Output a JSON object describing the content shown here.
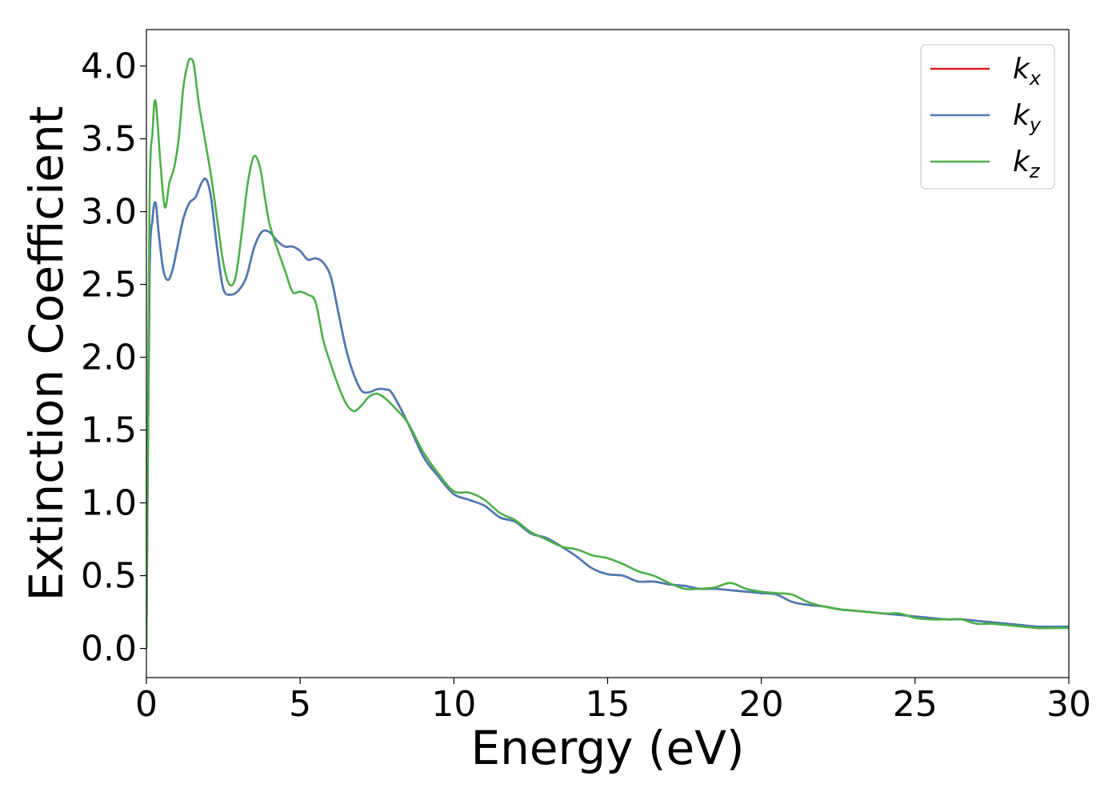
{
  "chart_data": {
    "type": "line",
    "xlabel": "Energy (eV)",
    "ylabel": "Extinction Coefficient",
    "xlim": [
      0,
      30
    ],
    "ylim": [
      -0.2,
      4.25
    ],
    "xticks": [
      0,
      5,
      10,
      15,
      20,
      25,
      30
    ],
    "xtick_labels": [
      "0",
      "5",
      "10",
      "15",
      "20",
      "25",
      "30"
    ],
    "yticks": [
      0.0,
      0.5,
      1.0,
      1.5,
      2.0,
      2.5,
      3.0,
      3.5,
      4.0
    ],
    "ytick_labels": [
      "0.0",
      "0.5",
      "1.0",
      "1.5",
      "2.0",
      "2.5",
      "3.0",
      "3.5",
      "4.0"
    ],
    "grid": false,
    "legend_position": "top-right",
    "series": [
      {
        "name": "k_x",
        "label_base": "k",
        "label_sub": "x",
        "color": "#e41a1c",
        "x": [
          0,
          0.1,
          0.2,
          0.3,
          0.4,
          0.55,
          0.7,
          0.85,
          1.0,
          1.2,
          1.4,
          1.6,
          1.8,
          1.95,
          2.1,
          2.3,
          2.5,
          2.75,
          3.0,
          3.25,
          3.5,
          3.75,
          4.0,
          4.25,
          4.5,
          4.75,
          5.0,
          5.25,
          5.5,
          5.75,
          6.0,
          6.25,
          6.5,
          6.75,
          7.0,
          7.25,
          7.5,
          7.75,
          8.0,
          8.5,
          9.0,
          9.5,
          10.0,
          10.5,
          11.0,
          11.5,
          12.0,
          12.5,
          13.0,
          13.5,
          14.0,
          14.5,
          15.0,
          15.5,
          16.0,
          16.5,
          17.0,
          17.5,
          18.0,
          18.5,
          19.0,
          19.5,
          20.0,
          20.5,
          21.0,
          21.5,
          22.0,
          22.5,
          23.0,
          23.5,
          24.0,
          24.5,
          25.0,
          25.5,
          26.0,
          26.5,
          27.0,
          27.5,
          28.0,
          28.5,
          29.0,
          29.5,
          30.0
        ],
        "y": [
          0.0,
          2.5,
          2.95,
          3.06,
          2.85,
          2.6,
          2.53,
          2.6,
          2.75,
          2.95,
          3.06,
          3.1,
          3.2,
          3.22,
          3.1,
          2.75,
          2.47,
          2.43,
          2.46,
          2.55,
          2.75,
          2.86,
          2.86,
          2.8,
          2.76,
          2.76,
          2.73,
          2.67,
          2.68,
          2.65,
          2.55,
          2.3,
          2.05,
          1.88,
          1.77,
          1.76,
          1.78,
          1.78,
          1.75,
          1.55,
          1.32,
          1.18,
          1.06,
          1.02,
          0.98,
          0.9,
          0.87,
          0.79,
          0.76,
          0.7,
          0.63,
          0.55,
          0.51,
          0.5,
          0.46,
          0.46,
          0.44,
          0.43,
          0.41,
          0.41,
          0.4,
          0.39,
          0.38,
          0.37,
          0.32,
          0.3,
          0.29,
          0.27,
          0.26,
          0.25,
          0.24,
          0.23,
          0.22,
          0.21,
          0.2,
          0.2,
          0.19,
          0.18,
          0.17,
          0.16,
          0.15,
          0.15,
          0.15
        ]
      },
      {
        "name": "k_y",
        "label_base": "k",
        "label_sub": "y",
        "color": "#4a7bb5",
        "x": [
          0,
          0.1,
          0.2,
          0.3,
          0.4,
          0.55,
          0.7,
          0.85,
          1.0,
          1.2,
          1.4,
          1.6,
          1.8,
          1.95,
          2.1,
          2.3,
          2.5,
          2.75,
          3.0,
          3.25,
          3.5,
          3.75,
          4.0,
          4.25,
          4.5,
          4.75,
          5.0,
          5.25,
          5.5,
          5.75,
          6.0,
          6.25,
          6.5,
          6.75,
          7.0,
          7.25,
          7.5,
          7.75,
          8.0,
          8.5,
          9.0,
          9.5,
          10.0,
          10.5,
          11.0,
          11.5,
          12.0,
          12.5,
          13.0,
          13.5,
          14.0,
          14.5,
          15.0,
          15.5,
          16.0,
          16.5,
          17.0,
          17.5,
          18.0,
          18.5,
          19.0,
          19.5,
          20.0,
          20.5,
          21.0,
          21.5,
          22.0,
          22.5,
          23.0,
          23.5,
          24.0,
          24.5,
          25.0,
          25.5,
          26.0,
          26.5,
          27.0,
          27.5,
          28.0,
          28.5,
          29.0,
          29.5,
          30.0
        ],
        "y": [
          0.0,
          2.5,
          2.95,
          3.06,
          2.85,
          2.6,
          2.53,
          2.6,
          2.75,
          2.95,
          3.06,
          3.1,
          3.2,
          3.22,
          3.1,
          2.75,
          2.47,
          2.43,
          2.46,
          2.55,
          2.75,
          2.86,
          2.86,
          2.8,
          2.76,
          2.76,
          2.73,
          2.67,
          2.68,
          2.65,
          2.55,
          2.3,
          2.05,
          1.88,
          1.77,
          1.76,
          1.78,
          1.78,
          1.75,
          1.55,
          1.32,
          1.18,
          1.06,
          1.02,
          0.98,
          0.9,
          0.87,
          0.79,
          0.76,
          0.7,
          0.63,
          0.55,
          0.51,
          0.5,
          0.46,
          0.46,
          0.44,
          0.43,
          0.41,
          0.41,
          0.4,
          0.39,
          0.38,
          0.37,
          0.32,
          0.3,
          0.29,
          0.27,
          0.26,
          0.25,
          0.24,
          0.23,
          0.22,
          0.21,
          0.2,
          0.2,
          0.19,
          0.18,
          0.17,
          0.16,
          0.15,
          0.15,
          0.15
        ]
      },
      {
        "name": "k_z",
        "label_base": "k",
        "label_sub": "z",
        "color": "#4daf4a",
        "x": [
          0,
          0.1,
          0.2,
          0.3,
          0.45,
          0.6,
          0.75,
          0.9,
          1.05,
          1.2,
          1.35,
          1.45,
          1.55,
          1.7,
          1.9,
          2.1,
          2.3,
          2.5,
          2.7,
          2.9,
          3.1,
          3.3,
          3.5,
          3.7,
          3.85,
          4.0,
          4.25,
          4.5,
          4.75,
          5.0,
          5.25,
          5.5,
          5.75,
          6.0,
          6.25,
          6.5,
          6.75,
          7.0,
          7.25,
          7.5,
          7.75,
          8.0,
          8.5,
          9.0,
          9.5,
          10.0,
          10.5,
          11.0,
          11.5,
          12.0,
          12.5,
          13.0,
          13.5,
          14.0,
          14.5,
          15.0,
          15.5,
          16.0,
          16.5,
          17.0,
          17.5,
          18.0,
          18.5,
          19.0,
          19.5,
          20.0,
          20.5,
          21.0,
          21.5,
          22.0,
          22.5,
          23.0,
          23.5,
          24.0,
          24.5,
          25.0,
          25.5,
          26.0,
          26.5,
          27.0,
          27.5,
          28.0,
          28.5,
          29.0,
          29.5,
          30.0
        ],
        "y": [
          0.0,
          3.0,
          3.55,
          3.76,
          3.35,
          3.03,
          3.2,
          3.3,
          3.5,
          3.85,
          4.02,
          4.05,
          4.0,
          3.75,
          3.5,
          3.25,
          2.95,
          2.65,
          2.5,
          2.55,
          2.85,
          3.2,
          3.38,
          3.3,
          3.1,
          2.92,
          2.75,
          2.6,
          2.45,
          2.45,
          2.43,
          2.38,
          2.12,
          1.95,
          1.8,
          1.68,
          1.63,
          1.67,
          1.73,
          1.75,
          1.72,
          1.67,
          1.55,
          1.35,
          1.2,
          1.08,
          1.07,
          1.02,
          0.93,
          0.88,
          0.8,
          0.75,
          0.7,
          0.68,
          0.64,
          0.62,
          0.58,
          0.53,
          0.5,
          0.45,
          0.41,
          0.41,
          0.42,
          0.45,
          0.41,
          0.39,
          0.38,
          0.37,
          0.32,
          0.29,
          0.27,
          0.26,
          0.25,
          0.24,
          0.24,
          0.21,
          0.2,
          0.2,
          0.2,
          0.17,
          0.17,
          0.16,
          0.15,
          0.14,
          0.14,
          0.14
        ]
      }
    ]
  }
}
